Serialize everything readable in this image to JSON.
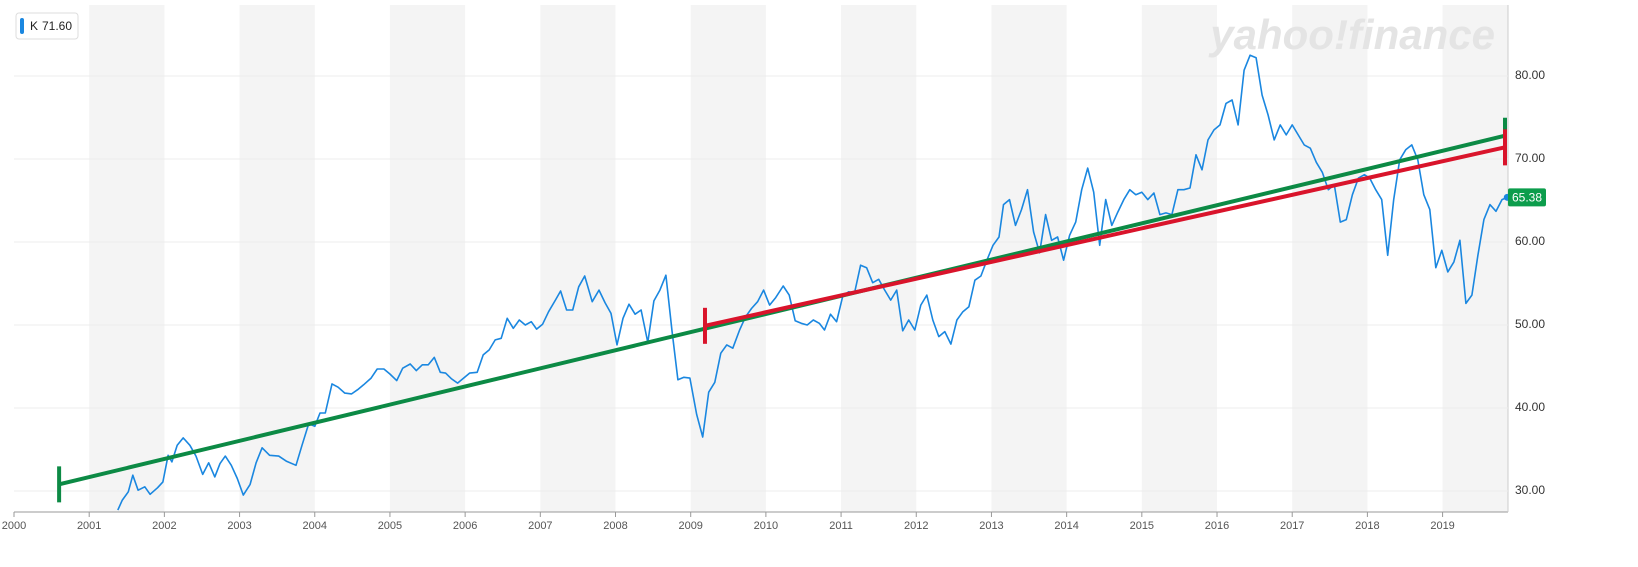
{
  "chart_data": {
    "type": "line",
    "watermark": "yahoo!finance",
    "legend": {
      "name": "K",
      "value": "71.60"
    },
    "last_price": 65.38,
    "xlim": [
      2000,
      2019.87
    ],
    "xticks": [
      2000,
      2001,
      2002,
      2003,
      2004,
      2005,
      2006,
      2007,
      2008,
      2009,
      2010,
      2011,
      2012,
      2013,
      2014,
      2015,
      2016,
      2017,
      2018,
      2019
    ],
    "ylim": [
      27.47,
      88.55
    ],
    "yticks": [
      {
        "value": 30,
        "label": "30.00"
      },
      {
        "value": 40,
        "label": "40.00"
      },
      {
        "value": 50,
        "label": "50.00"
      },
      {
        "value": 60,
        "label": "60.00"
      },
      {
        "value": 70,
        "label": "70.00"
      },
      {
        "value": 80,
        "label": "80.00"
      }
    ],
    "grid": true,
    "series": [
      {
        "color": "#1a87e0",
        "x": [
          2001.38,
          2001.44,
          2001.52,
          2001.58,
          2001.65,
          2001.74,
          2001.81,
          2001.91,
          2001.98,
          2002.05,
          2002.1,
          2002.17,
          2002.25,
          2002.34,
          2002.42,
          2002.51,
          2002.59,
          2002.67,
          2002.74,
          2002.81,
          2002.89,
          2002.97,
          2003.05,
          2003.14,
          2003.22,
          2003.3,
          2003.4,
          2003.52,
          2003.62,
          2003.75,
          2003.83,
          2003.92,
          2004.0,
          2004.07,
          2004.14,
          2004.23,
          2004.31,
          2004.4,
          2004.49,
          2004.57,
          2004.65,
          2004.75,
          2004.83,
          2004.92,
          2005.0,
          2005.09,
          2005.17,
          2005.27,
          2005.35,
          2005.43,
          2005.51,
          2005.59,
          2005.67,
          2005.74,
          2005.82,
          2005.9,
          2005.98,
          2006.06,
          2006.16,
          2006.24,
          2006.32,
          2006.4,
          2006.48,
          2006.56,
          2006.64,
          2006.72,
          2006.8,
          2006.88,
          2006.95,
          2007.03,
          2007.11,
          2007.2,
          2007.27,
          2007.35,
          2007.43,
          2007.51,
          2007.59,
          2007.69,
          2007.78,
          2007.86,
          2007.94,
          2008.02,
          2008.1,
          2008.18,
          2008.26,
          2008.34,
          2008.43,
          2008.51,
          2008.59,
          2008.67,
          2008.75,
          2008.83,
          2008.91,
          2008.99,
          2009.08,
          2009.16,
          2009.24,
          2009.32,
          2009.4,
          2009.48,
          2009.56,
          2009.65,
          2009.73,
          2009.81,
          2009.89,
          2009.97,
          2010.05,
          2010.13,
          2010.23,
          2010.31,
          2010.39,
          2010.47,
          2010.55,
          2010.63,
          2010.71,
          2010.78,
          2010.86,
          2010.94,
          2011.02,
          2011.1,
          2011.18,
          2011.26,
          2011.34,
          2011.42,
          2011.5,
          2011.58,
          2011.66,
          2011.74,
          2011.82,
          2011.9,
          2011.98,
          2012.06,
          2012.14,
          2012.22,
          2012.3,
          2012.38,
          2012.46,
          2012.54,
          2012.62,
          2012.7,
          2012.78,
          2012.86,
          2012.94,
          2013.02,
          2013.1,
          2013.16,
          2013.24,
          2013.32,
          2013.4,
          2013.48,
          2013.56,
          2013.64,
          2013.72,
          2013.8,
          2013.88,
          2013.96,
          2014.04,
          2014.12,
          2014.2,
          2014.28,
          2014.36,
          2014.44,
          2014.52,
          2014.6,
          2014.68,
          2014.76,
          2014.84,
          2014.92,
          2015.0,
          2015.08,
          2015.16,
          2015.24,
          2015.32,
          2015.4,
          2015.48,
          2015.56,
          2015.64,
          2015.72,
          2015.8,
          2015.88,
          2015.96,
          2016.04,
          2016.12,
          2016.2,
          2016.28,
          2016.36,
          2016.44,
          2016.52,
          2016.6,
          2016.68,
          2016.76,
          2016.84,
          2016.92,
          2017.0,
          2017.08,
          2017.16,
          2017.24,
          2017.32,
          2017.4,
          2017.48,
          2017.56,
          2017.64,
          2017.72,
          2017.8,
          2017.88,
          2017.96,
          2018.03,
          2018.11,
          2018.19,
          2018.27,
          2018.35,
          2018.43,
          2018.51,
          2018.59,
          2018.67,
          2018.75,
          2018.83,
          2018.91,
          2018.99,
          2019.07,
          2019.15,
          2019.23,
          2019.31,
          2019.39,
          2019.47,
          2019.55,
          2019.63,
          2019.71,
          2019.79,
          2019.86
        ],
        "values": [
          27.7,
          28.9,
          29.9,
          31.9,
          30.1,
          30.5,
          29.6,
          30.4,
          31.1,
          34.3,
          33.5,
          35.5,
          36.4,
          35.5,
          34.2,
          32.0,
          33.4,
          31.7,
          33.3,
          34.2,
          33.1,
          31.5,
          29.5,
          30.8,
          33.4,
          35.2,
          34.3,
          34.2,
          33.6,
          33.1,
          35.5,
          38.1,
          37.8,
          39.4,
          39.4,
          42.9,
          42.5,
          41.8,
          41.7,
          42.2,
          42.8,
          43.6,
          44.7,
          44.7,
          44.1,
          43.3,
          44.8,
          45.3,
          44.5,
          45.2,
          45.2,
          46.1,
          44.3,
          44.2,
          43.5,
          43.0,
          43.6,
          44.2,
          44.3,
          46.4,
          47.0,
          48.2,
          48.4,
          50.8,
          49.6,
          50.6,
          50.0,
          50.4,
          49.5,
          50.1,
          51.6,
          53.0,
          54.1,
          51.8,
          51.8,
          54.6,
          55.9,
          52.8,
          54.2,
          52.7,
          51.4,
          47.6,
          50.8,
          52.5,
          51.3,
          51.8,
          47.9,
          52.9,
          54.2,
          56.0,
          49.4,
          43.4,
          43.7,
          43.6,
          39.2,
          36.5,
          41.9,
          43.1,
          46.6,
          47.6,
          47.2,
          49.4,
          51.0,
          52.0,
          52.8,
          54.2,
          52.4,
          53.3,
          54.7,
          53.6,
          50.5,
          50.2,
          50.0,
          50.6,
          50.2,
          49.4,
          51.3,
          50.4,
          53.4,
          54.0,
          53.9,
          57.2,
          56.9,
          55.1,
          55.5,
          54.2,
          53.0,
          54.2,
          49.3,
          50.6,
          49.4,
          52.4,
          53.6,
          50.6,
          48.6,
          49.2,
          47.7,
          50.6,
          51.6,
          52.2,
          55.4,
          55.9,
          57.8,
          59.6,
          60.6,
          64.5,
          65.1,
          62.0,
          63.9,
          66.3,
          61.2,
          58.7,
          63.3,
          60.2,
          60.6,
          57.8,
          60.8,
          62.4,
          66.3,
          68.9,
          66.0,
          59.6,
          65.1,
          62.0,
          63.6,
          65.1,
          66.3,
          65.7,
          66.0,
          65.1,
          65.9,
          63.3,
          63.5,
          63.3,
          66.3,
          66.3,
          66.5,
          70.5,
          68.7,
          72.3,
          73.5,
          74.1,
          76.7,
          77.1,
          74.1,
          80.7,
          82.5,
          82.2,
          77.7,
          75.3,
          72.3,
          74.1,
          72.9,
          74.1,
          72.9,
          71.7,
          71.3,
          69.6,
          68.4,
          66.3,
          66.9,
          62.4,
          62.7,
          65.7,
          67.7,
          68.1,
          67.7,
          66.3,
          65.1,
          58.4,
          65.1,
          69.9,
          71.1,
          71.7,
          69.9,
          65.7,
          63.9,
          56.9,
          59.0,
          56.4,
          57.6,
          60.2,
          52.6,
          53.6,
          58.4,
          62.7,
          64.5,
          63.7,
          65.1,
          65.38
        ]
      }
    ],
    "trendlines": [
      {
        "color": "#0c8a45",
        "x": [
          2000.6,
          2019.83
        ],
        "values": [
          30.8,
          72.8
        ]
      },
      {
        "color": "#d9142b",
        "x": [
          2009.19,
          2019.83
        ],
        "values": [
          49.9,
          71.4
        ]
      }
    ]
  }
}
